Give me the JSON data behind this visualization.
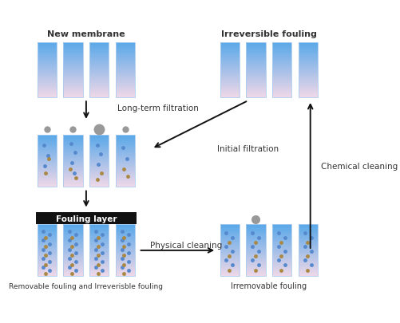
{
  "bg_color": "#ffffff",
  "membrane_top_color": "#5aa8e8",
  "membrane_bottom_color": "#f0d8e8",
  "blue_dot_color": "#5588cc",
  "tan_dot_color": "#aa8844",
  "gray_dot_color": "#999999",
  "fouling_layer_color": "#111111",
  "fouling_layer_text_color": "#ffffff",
  "arrow_color": "#111111",
  "label_color": "#333333",
  "labels": {
    "new_membrane": "New membrane",
    "irreversible_fouling": "Irreversible fouling",
    "initial_filtration": "Initial filtration",
    "chemical_cleaning": "Chemical cleaning",
    "long_term_filtration": "Long-term filtration",
    "physical_cleaning": "Physical cleaning",
    "fouling_layer": "Fouling layer",
    "removable_fouling": "Removable fouling and Irreverisble fouling",
    "irremovable_fouling": "Irremovable fouling"
  }
}
